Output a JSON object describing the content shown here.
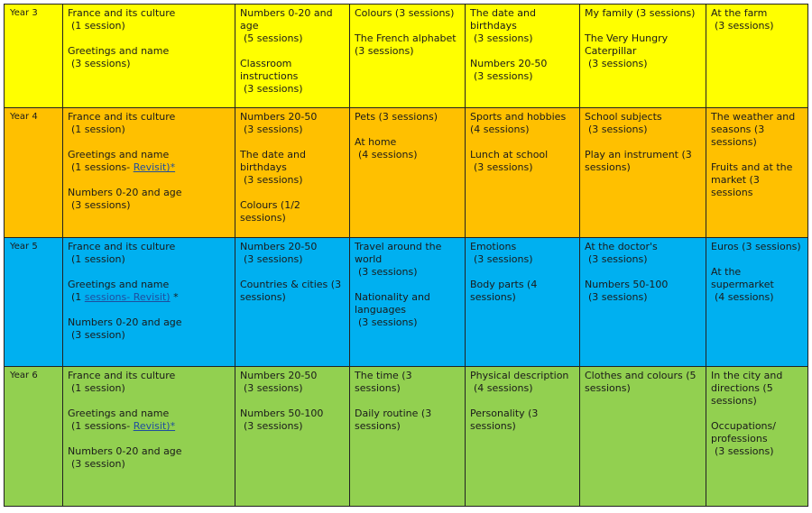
{
  "document": {
    "rows": [
      {
        "year": "Year 3",
        "cells": [
          [
            {
              "title": "France and its culture",
              "detail": "(1 session)"
            },
            {
              "title": "Greetings and name",
              "detail": "(3 sessions)"
            }
          ],
          [
            {
              "title": "Numbers 0-20 and age",
              "detail": "(5 sessions)"
            },
            {
              "title": "Classroom instructions",
              "detail": "(3 sessions)"
            }
          ],
          [
            {
              "title": "Colours (3 sessions)",
              "detail": ""
            },
            {
              "title": "The French alphabet (3 sessions)",
              "detail": ""
            }
          ],
          [
            {
              "title": "The date and birthdays",
              "detail": "(3 sessions)"
            },
            {
              "title": "Numbers 20-50",
              "detail": "(3 sessions)"
            }
          ],
          [
            {
              "title": "My family (3 sessions)",
              "detail": ""
            },
            {
              "title": "The Very Hungry Caterpillar",
              "detail": "(3 sessions)"
            }
          ],
          [
            {
              "title": "At the farm",
              "detail": "(3 sessions)"
            }
          ]
        ]
      },
      {
        "year": "Year 4",
        "cells": [
          [
            {
              "title": "France and its culture",
              "detail": "(1 session)"
            },
            {
              "title": "Greetings and name",
              "detail": "(1 sessions- ",
              "revisit": "Revisit)*"
            },
            {
              "title": "Numbers 0-20 and age",
              "detail": "(3 sessions)"
            }
          ],
          [
            {
              "title": "Numbers 20-50",
              "detail": "(3 sessions)"
            },
            {
              "title": "The date and birthdays",
              "detail": "(3 sessions)"
            },
            {
              "title": "Colours (1/2 sessions)",
              "detail": ""
            }
          ],
          [
            {
              "title": "Pets (3 sessions)",
              "detail": ""
            },
            {
              "title": "At home",
              "detail": "(4 sessions)"
            }
          ],
          [
            {
              "title": "Sports and hobbies (4 sessions)",
              "detail": ""
            },
            {
              "title": "Lunch at school",
              "detail": "(3 sessions)"
            }
          ],
          [
            {
              "title": "School subjects",
              "detail": "(3 sessions)"
            },
            {
              "title": "Play an instrument (3 sessions)",
              "detail": ""
            }
          ],
          [
            {
              "title": "The weather and seasons (3 sessions)",
              "detail": ""
            },
            {
              "title": "Fruits and at the market (3 sessions",
              "detail": ""
            }
          ]
        ]
      },
      {
        "year": "Year 5",
        "cells": [
          [
            {
              "title": "France and its culture",
              "detail": "(1 session)"
            },
            {
              "title": "Greetings and name",
              "detail": "(1 ",
              "revisit": "sessions- Revisit)",
              "after": " *"
            },
            {
              "title": "Numbers 0-20 and age",
              "detail": "(3 session)"
            }
          ],
          [
            {
              "title": "Numbers 20-50",
              "detail": "(3 sessions)"
            },
            {
              "title": "Countries & cities (3 sessions)",
              "detail": ""
            }
          ],
          [
            {
              "title": "Travel around the world",
              "detail": "(3 sessions)"
            },
            {
              "title": "Nationality and languages",
              "detail": "(3 sessions)"
            }
          ],
          [
            {
              "title": "Emotions",
              "detail": "(3 sessions)"
            },
            {
              "title": "Body parts (4 sessions)",
              "detail": ""
            }
          ],
          [
            {
              "title": "At the doctor's",
              "detail": "(3 sessions)"
            },
            {
              "title": "Numbers 50-100",
              "detail": "(3 sessions)"
            }
          ],
          [
            {
              "title": "Euros (3 sessions)",
              "detail": ""
            },
            {
              "title": "At the supermarket",
              "detail": "(4 sessions)"
            }
          ]
        ]
      },
      {
        "year": "Year 6",
        "cells": [
          [
            {
              "title": "France and its culture",
              "detail": "(1 session)"
            },
            {
              "title": "Greetings and name",
              "detail": "(1 sessions- ",
              "revisit": "Revisit)*"
            },
            {
              "title": "Numbers 0-20 and age",
              "detail": "(3 session)"
            }
          ],
          [
            {
              "title": "Numbers 20-50",
              "detail": "(3 sessions)"
            },
            {
              "title": "Numbers 50-100",
              "detail": "(3 sessions)"
            }
          ],
          [
            {
              "title": "The time (3 sessions)",
              "detail": ""
            },
            {
              "title": "Daily routine (3 sessions)",
              "detail": ""
            }
          ],
          [
            {
              "title": "Physical description",
              "detail": "(4 sessions)"
            },
            {
              "title": "Personality (3 sessions)",
              "detail": ""
            }
          ],
          [
            {
              "title": "Clothes and colours (5 sessions)",
              "detail": ""
            }
          ],
          [
            {
              "title": "In the city and directions (5 sessions)",
              "detail": ""
            },
            {
              "title": "Occupations/ professions",
              "detail": "(3 sessions)"
            }
          ]
        ]
      }
    ]
  }
}
